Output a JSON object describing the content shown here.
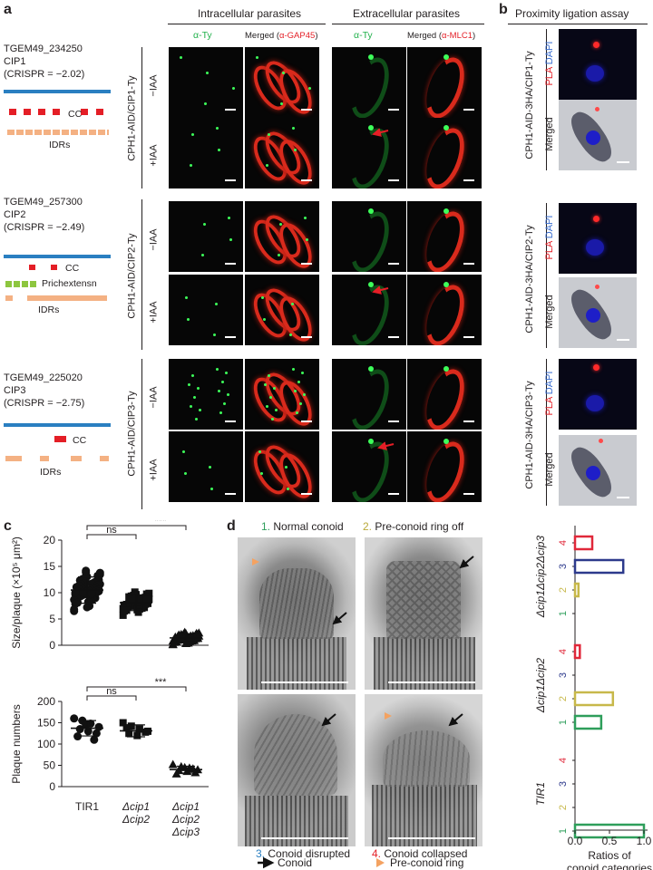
{
  "panel_letters": {
    "a": "a",
    "b": "b",
    "c": "c",
    "d": "d"
  },
  "panel_a": {
    "header_intracellular": "Intracellular parasites",
    "header_extracellular": "Extracellular parasites",
    "col_alpha_ty": "α-Ty",
    "col_merged_prefix": "Merged (",
    "col_merged_gap45": "α-GAP45",
    "col_merged_mlc1": "α-MLC1",
    "col_merged_suffix": ")",
    "treat_minus": "−IAA",
    "treat_plus": "+IAA",
    "genes": [
      {
        "id": "TGEM49_234250",
        "name": "CIP1",
        "crispr": "(CRISPR = −2.02)",
        "strain": "CPH1-AID/CIP1-Ty",
        "labels": [
          "CC",
          "IDRs"
        ]
      },
      {
        "id": "TGEM49_257300",
        "name": "CIP2",
        "crispr": "(CRISPR = −2.49)",
        "strain": "CPH1-AID/CIP2-Ty",
        "labels": [
          "CC",
          "Prichextensn",
          "IDRs"
        ]
      },
      {
        "id": "TGEM49_225020",
        "name": "CIP3",
        "crispr": "(CRISPR = −2.75)",
        "strain": "CPH1-AID/CIP3-Ty",
        "labels": [
          "CC",
          "IDRs"
        ]
      }
    ]
  },
  "panel_b": {
    "title": "Proximity ligation assay",
    "pla": "PLA",
    "dapi": "DAPI",
    "merged": "Merged",
    "strains": [
      "CPH1-AID-3HA/CIP1-Ty",
      "CPH1-AID-3HA/CIP2-Ty",
      "CPH1-AID-3HA/CIP3-Ty"
    ]
  },
  "panel_c": {
    "chart_data": [
      {
        "type": "scatter",
        "ylabel": "Size/plaque (×10⁵ μm²)",
        "ylim": [
          0,
          20
        ],
        "yticks": [
          0,
          5,
          10,
          15,
          20
        ],
        "categories": [
          "TIR1",
          "Δcip1 Δcip2",
          "Δcip1 Δcip2 Δcip3"
        ],
        "means": [
          10.5,
          8.1,
          1.4
        ],
        "sd": [
          2.5,
          1.5,
          0.8
        ],
        "significance": [
          {
            "pair": [
              0,
              1
            ],
            "label": "ns"
          },
          {
            "pair": [
              0,
              2
            ],
            "label": "***"
          }
        ]
      },
      {
        "type": "scatter",
        "ylabel": "Plaque numbers",
        "ylim": [
          0,
          200
        ],
        "yticks": [
          0,
          50,
          100,
          150,
          200
        ],
        "categories": [
          "TIR1",
          "Δcip1 Δcip2",
          "Δcip1 Δcip2 Δcip3"
        ],
        "means": [
          137,
          131,
          40
        ],
        "sd": [
          18,
          14,
          8
        ],
        "points": [
          [
            160,
            155,
            148,
            140,
            135,
            130,
            125,
            118,
            145,
            110
          ],
          [
            150,
            142,
            135,
            130,
            125,
            120,
            128,
            138
          ],
          [
            52,
            47,
            44,
            40,
            38,
            36,
            33,
            30,
            45,
            42
          ]
        ],
        "significance": [
          {
            "pair": [
              0,
              1
            ],
            "label": "ns"
          },
          {
            "pair": [
              0,
              2
            ],
            "label": "***"
          }
        ]
      }
    ],
    "x_labels": [
      [
        "TIR1"
      ],
      [
        "Δcip1",
        "Δcip2"
      ],
      [
        "Δcip1",
        "Δcip2",
        "Δcip3"
      ]
    ]
  },
  "panel_d": {
    "captions": [
      {
        "num": "1.",
        "text": " Normal conoid"
      },
      {
        "num": "2.",
        "text": " Pre-conoid ring off"
      },
      {
        "num": "3.",
        "text": " Conoid disrupted"
      },
      {
        "num": "4.",
        "text": " Conoid collapsed"
      }
    ],
    "legend_conoid": "Conoid",
    "legend_preconoid": "Pre-conoid ring",
    "chart_data": {
      "type": "bar",
      "orientation": "horizontal",
      "xlabel": "Ratios of conoid categories",
      "xlim": [
        0,
        1
      ],
      "xticks": [
        "0.0",
        "0.5",
        "1.0"
      ],
      "groups": [
        {
          "name": "Δcip1Δcip2Δcip3",
          "categories": [
            "4",
            "3",
            "2",
            "1"
          ],
          "values": [
            0.25,
            0.7,
            0.05,
            0
          ]
        },
        {
          "name": "Δcip1Δcip2",
          "categories": [
            "4",
            "3",
            "2",
            "1"
          ],
          "values": [
            0.07,
            0,
            0.55,
            0.38
          ]
        },
        {
          "name": "TIR1",
          "categories": [
            "4",
            "3",
            "2",
            "1"
          ],
          "values": [
            0,
            0,
            0,
            1.0
          ]
        }
      ],
      "colors": {
        "1": "#2e9e5b",
        "2": "#c7b84a",
        "3": "#2d3a8c",
        "4": "#e0283a"
      }
    }
  }
}
